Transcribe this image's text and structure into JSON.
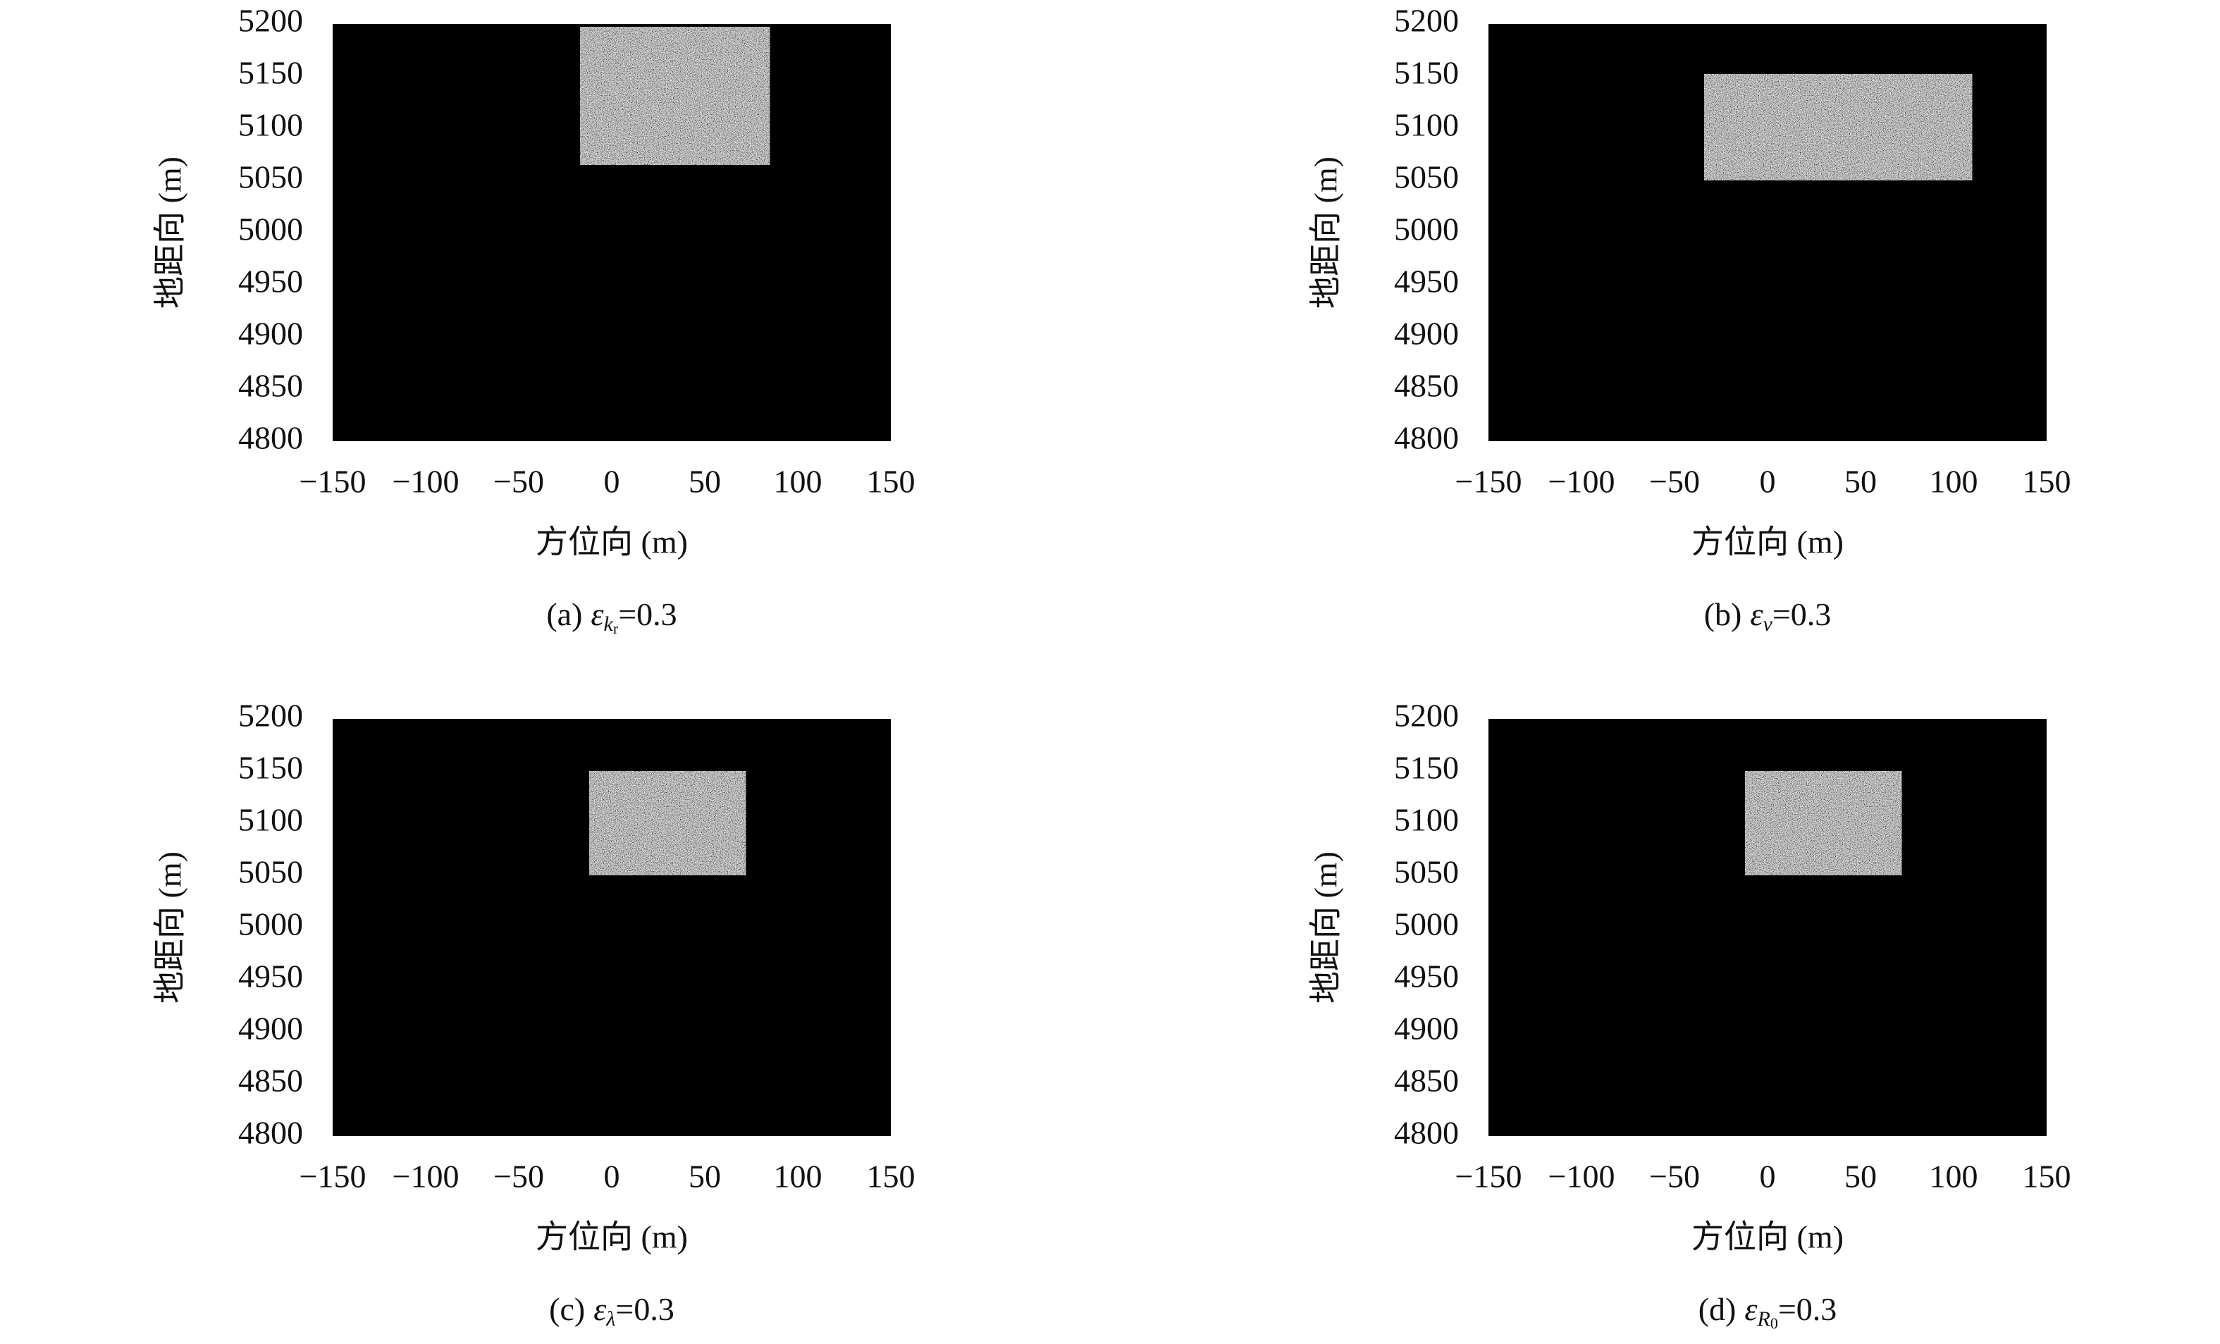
{
  "chart_data": [
    {
      "type": "image",
      "caption": {
        "label": "(a)",
        "symbol": "ε",
        "subscript": "k",
        "subsubscript": "r",
        "suffix": "=0.3"
      },
      "xlabel": "方位向 (m)",
      "ylabel": "地距向 (m)",
      "xlim": [
        -150,
        150
      ],
      "ylim": [
        4800,
        5200
      ],
      "xticks": [
        {
          "value": -150,
          "label": "−150"
        },
        {
          "value": -100,
          "label": "−100"
        },
        {
          "value": -50,
          "label": "−50"
        },
        0,
        50,
        100,
        150
      ],
      "yticks": [
        4800,
        4850,
        4900,
        4950,
        5000,
        5050,
        5100,
        5150,
        5200
      ],
      "bright_region": {
        "x": [
          -17,
          85
        ],
        "y": [
          5065,
          5197
        ]
      }
    },
    {
      "type": "image",
      "caption": {
        "label": "(b)",
        "symbol": "ε",
        "subscript": "v",
        "suffix": "=0.3"
      },
      "xlabel": "方位向 (m)",
      "ylabel": "地距向 (m)",
      "xlim": [
        -150,
        150
      ],
      "ylim": [
        4800,
        5200
      ],
      "xticks": [
        {
          "value": -150,
          "label": "−150"
        },
        {
          "value": -100,
          "label": "−100"
        },
        {
          "value": -50,
          "label": "−50"
        },
        0,
        50,
        100,
        150
      ],
      "yticks": [
        4800,
        4850,
        4900,
        4950,
        5000,
        5050,
        5100,
        5150,
        5200
      ],
      "bright_region": {
        "x": [
          -34,
          110
        ],
        "y": [
          5050,
          5152
        ]
      }
    },
    {
      "type": "image",
      "caption": {
        "label": "(c)",
        "symbol": "ε",
        "subscript": "λ",
        "suffix": "=0.3"
      },
      "xlabel": "方位向 (m)",
      "ylabel": "地距向 (m)",
      "xlim": [
        -150,
        150
      ],
      "ylim": [
        4800,
        5200
      ],
      "xticks": [
        {
          "value": -150,
          "label": "−150"
        },
        {
          "value": -100,
          "label": "−100"
        },
        {
          "value": -50,
          "label": "−50"
        },
        0,
        50,
        100,
        150
      ],
      "yticks": [
        4800,
        4850,
        4900,
        4950,
        5000,
        5050,
        5100,
        5150,
        5200
      ],
      "bright_region": {
        "x": [
          -12,
          72
        ],
        "y": [
          5050,
          5150
        ]
      }
    },
    {
      "type": "image",
      "caption": {
        "label": "(d)",
        "symbol": "ε",
        "subscript": "R",
        "subsubscript": "0",
        "suffix": "=0.3"
      },
      "xlabel": "方位向 (m)",
      "ylabel": "地距向 (m)",
      "xlim": [
        -150,
        150
      ],
      "ylim": [
        4800,
        5200
      ],
      "xticks": [
        {
          "value": -150,
          "label": "−150"
        },
        {
          "value": -100,
          "label": "−100"
        },
        {
          "value": -50,
          "label": "−50"
        },
        0,
        50,
        100,
        150
      ],
      "yticks": [
        4800,
        4850,
        4900,
        4950,
        5000,
        5050,
        5100,
        5150,
        5200
      ],
      "bright_region": {
        "x": [
          -12,
          72
        ],
        "y": [
          5050,
          5150
        ]
      }
    }
  ]
}
